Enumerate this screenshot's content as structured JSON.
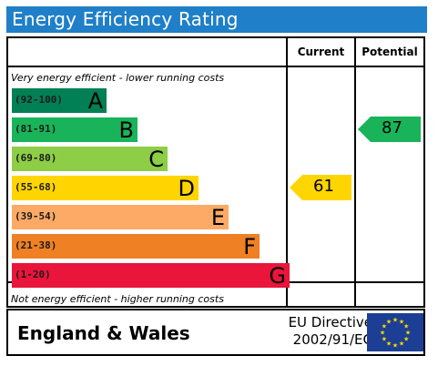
{
  "title": "Energy Efficiency Rating",
  "columns": {
    "current": "Current",
    "potential": "Potential"
  },
  "notes": {
    "top": "Very energy efficient - lower running costs",
    "bottom": "Not energy efficient - higher running costs"
  },
  "chart_data": {
    "type": "bar",
    "categories": [
      "A",
      "B",
      "C",
      "D",
      "E",
      "F",
      "G"
    ],
    "bands": [
      {
        "letter": "A",
        "range": "(92-100)",
        "color": "#008054"
      },
      {
        "letter": "B",
        "range": "(81-91)",
        "color": "#19b459"
      },
      {
        "letter": "C",
        "range": "(69-80)",
        "color": "#8dce46"
      },
      {
        "letter": "D",
        "range": "(55-68)",
        "color": "#ffd500"
      },
      {
        "letter": "E",
        "range": "(39-54)",
        "color": "#fcaa65"
      },
      {
        "letter": "F",
        "range": "(21-38)",
        "color": "#ef8023"
      },
      {
        "letter": "G",
        "range": "(1-20)",
        "color": "#e9153b"
      }
    ],
    "current": {
      "value": 61,
      "band": "D",
      "color": "#ffd500"
    },
    "potential": {
      "value": 87,
      "band": "B",
      "color": "#19b459"
    }
  },
  "footer": {
    "region": "England & Wales",
    "directive_line1": "EU Directive",
    "directive_line2": "2002/91/EC"
  }
}
